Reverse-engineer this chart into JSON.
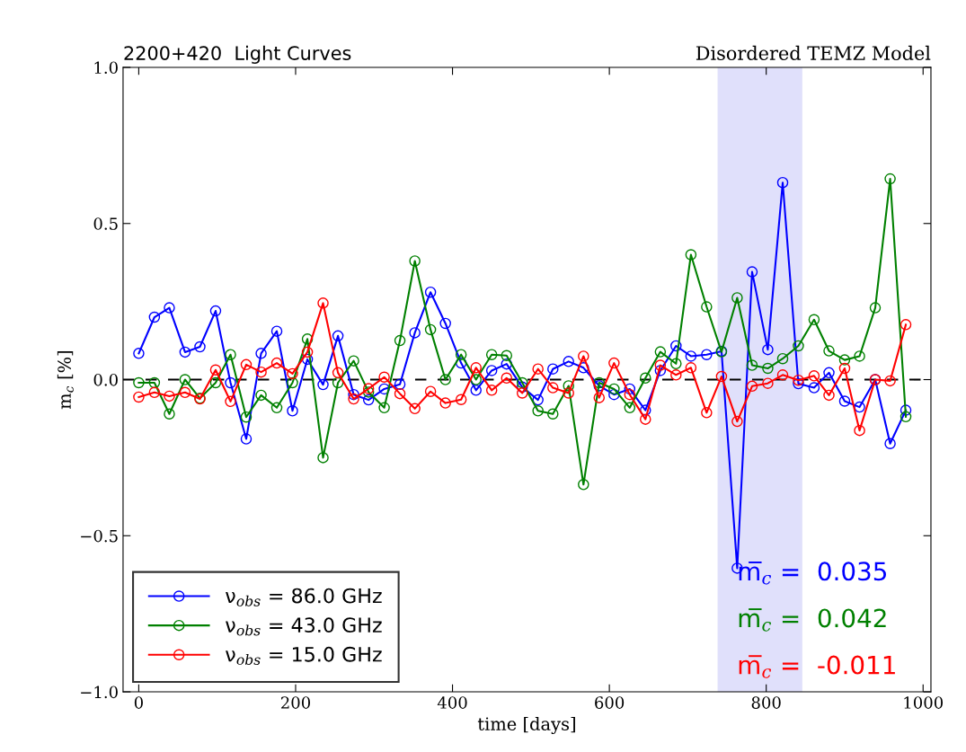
{
  "chart_data": {
    "type": "line",
    "title": "2200+420  Light Curves",
    "subtitle": "Disordered TEMZ Model",
    "xlabel": "time [days]",
    "ylabel": "m$_{c}$ [%]",
    "x": [
      0,
      20,
      39,
      59,
      78,
      98,
      117,
      137,
      156,
      176,
      196,
      215,
      235,
      254,
      274,
      293,
      313,
      333,
      352,
      372,
      391,
      411,
      430,
      450,
      469,
      489,
      509,
      528,
      548,
      567,
      587,
      606,
      626,
      646,
      665,
      685,
      704,
      724,
      743,
      763,
      782,
      802,
      821,
      841,
      861,
      880,
      900,
      919,
      939,
      958,
      978
    ],
    "series": [
      {
        "name": "ν$_{obs}$ = 86.0 GHz",
        "color": "#0000ff",
        "values": [
          0.084,
          0.2,
          0.23,
          0.088,
          0.105,
          0.22,
          -0.01,
          -0.19,
          0.084,
          0.155,
          -0.1,
          0.065,
          -0.016,
          0.14,
          -0.048,
          -0.065,
          -0.03,
          -0.015,
          0.15,
          0.28,
          0.18,
          0.053,
          -0.034,
          0.029,
          0.05,
          -0.024,
          -0.065,
          0.034,
          0.058,
          0.038,
          -0.02,
          -0.048,
          -0.03,
          -0.098,
          0.029,
          0.108,
          0.075,
          0.08,
          0.091,
          -0.604,
          0.345,
          0.096,
          0.631,
          -0.013,
          -0.026,
          0.022,
          -0.069,
          -0.088,
          0.0,
          -0.205,
          -0.098
        ]
      },
      {
        "name": "ν$_{obs}$ = 43.0 GHz",
        "color": "#008000",
        "values": [
          -0.01,
          -0.01,
          -0.11,
          0.0,
          -0.06,
          -0.01,
          0.08,
          -0.12,
          -0.05,
          -0.09,
          -0.01,
          0.13,
          -0.25,
          -0.01,
          0.06,
          -0.04,
          -0.09,
          0.125,
          0.38,
          0.16,
          0.0,
          0.08,
          0.0,
          0.08,
          0.077,
          -0.01,
          -0.1,
          -0.11,
          -0.02,
          -0.336,
          -0.01,
          -0.03,
          -0.09,
          0.005,
          0.089,
          0.051,
          0.4,
          0.233,
          0.089,
          0.262,
          0.046,
          0.036,
          0.067,
          0.108,
          0.192,
          0.092,
          0.063,
          0.075,
          0.23,
          0.643,
          -0.119
        ]
      },
      {
        "name": "ν$_{obs}$ = 15.0 GHz",
        "color": "#ff0000",
        "values": [
          -0.056,
          -0.041,
          -0.053,
          -0.041,
          -0.062,
          0.031,
          -0.07,
          0.048,
          0.024,
          0.053,
          0.019,
          0.088,
          0.245,
          0.022,
          -0.062,
          -0.029,
          0.008,
          -0.045,
          -0.093,
          -0.038,
          -0.075,
          -0.064,
          0.038,
          -0.034,
          0.005,
          -0.043,
          0.034,
          -0.026,
          -0.043,
          0.075,
          -0.058,
          0.053,
          -0.048,
          -0.127,
          0.046,
          0.015,
          0.038,
          -0.106,
          0.01,
          -0.134,
          -0.021,
          -0.012,
          0.015,
          -0.002,
          0.012,
          -0.05,
          0.036,
          -0.163,
          0.0,
          -0.004,
          0.176
        ]
      }
    ],
    "xlim": [
      -20,
      1010
    ],
    "ylim": [
      -1.0,
      1.0
    ],
    "xticks": [
      0,
      200,
      400,
      600,
      800,
      1000
    ],
    "yticks": [
      {
        "value": -1.0,
        "label": "−1.0"
      },
      {
        "value": -0.5,
        "label": "−0.5"
      },
      {
        "value": 0.0,
        "label": "0.0"
      },
      {
        "value": 0.5,
        "label": "0.5"
      },
      {
        "value": 1.0,
        "label": "1.0"
      }
    ],
    "ref_lines": [
      {
        "axis": "y",
        "value": 0,
        "label": null,
        "color": "#000000",
        "line_style": "dashed"
      }
    ],
    "bands": [
      {
        "axis": "x",
        "from": 738,
        "to": 846,
        "label": null,
        "color": "#e0e0fb"
      }
    ],
    "annotations": [
      "m̅$_{c}$ =  0.035",
      "m̅$_{c}$ =  0.042",
      "m̅$_{c}$ =  -0.011"
    ],
    "marker": "circle",
    "line_style": "solid",
    "legend": "bottom left",
    "grid": false
  }
}
